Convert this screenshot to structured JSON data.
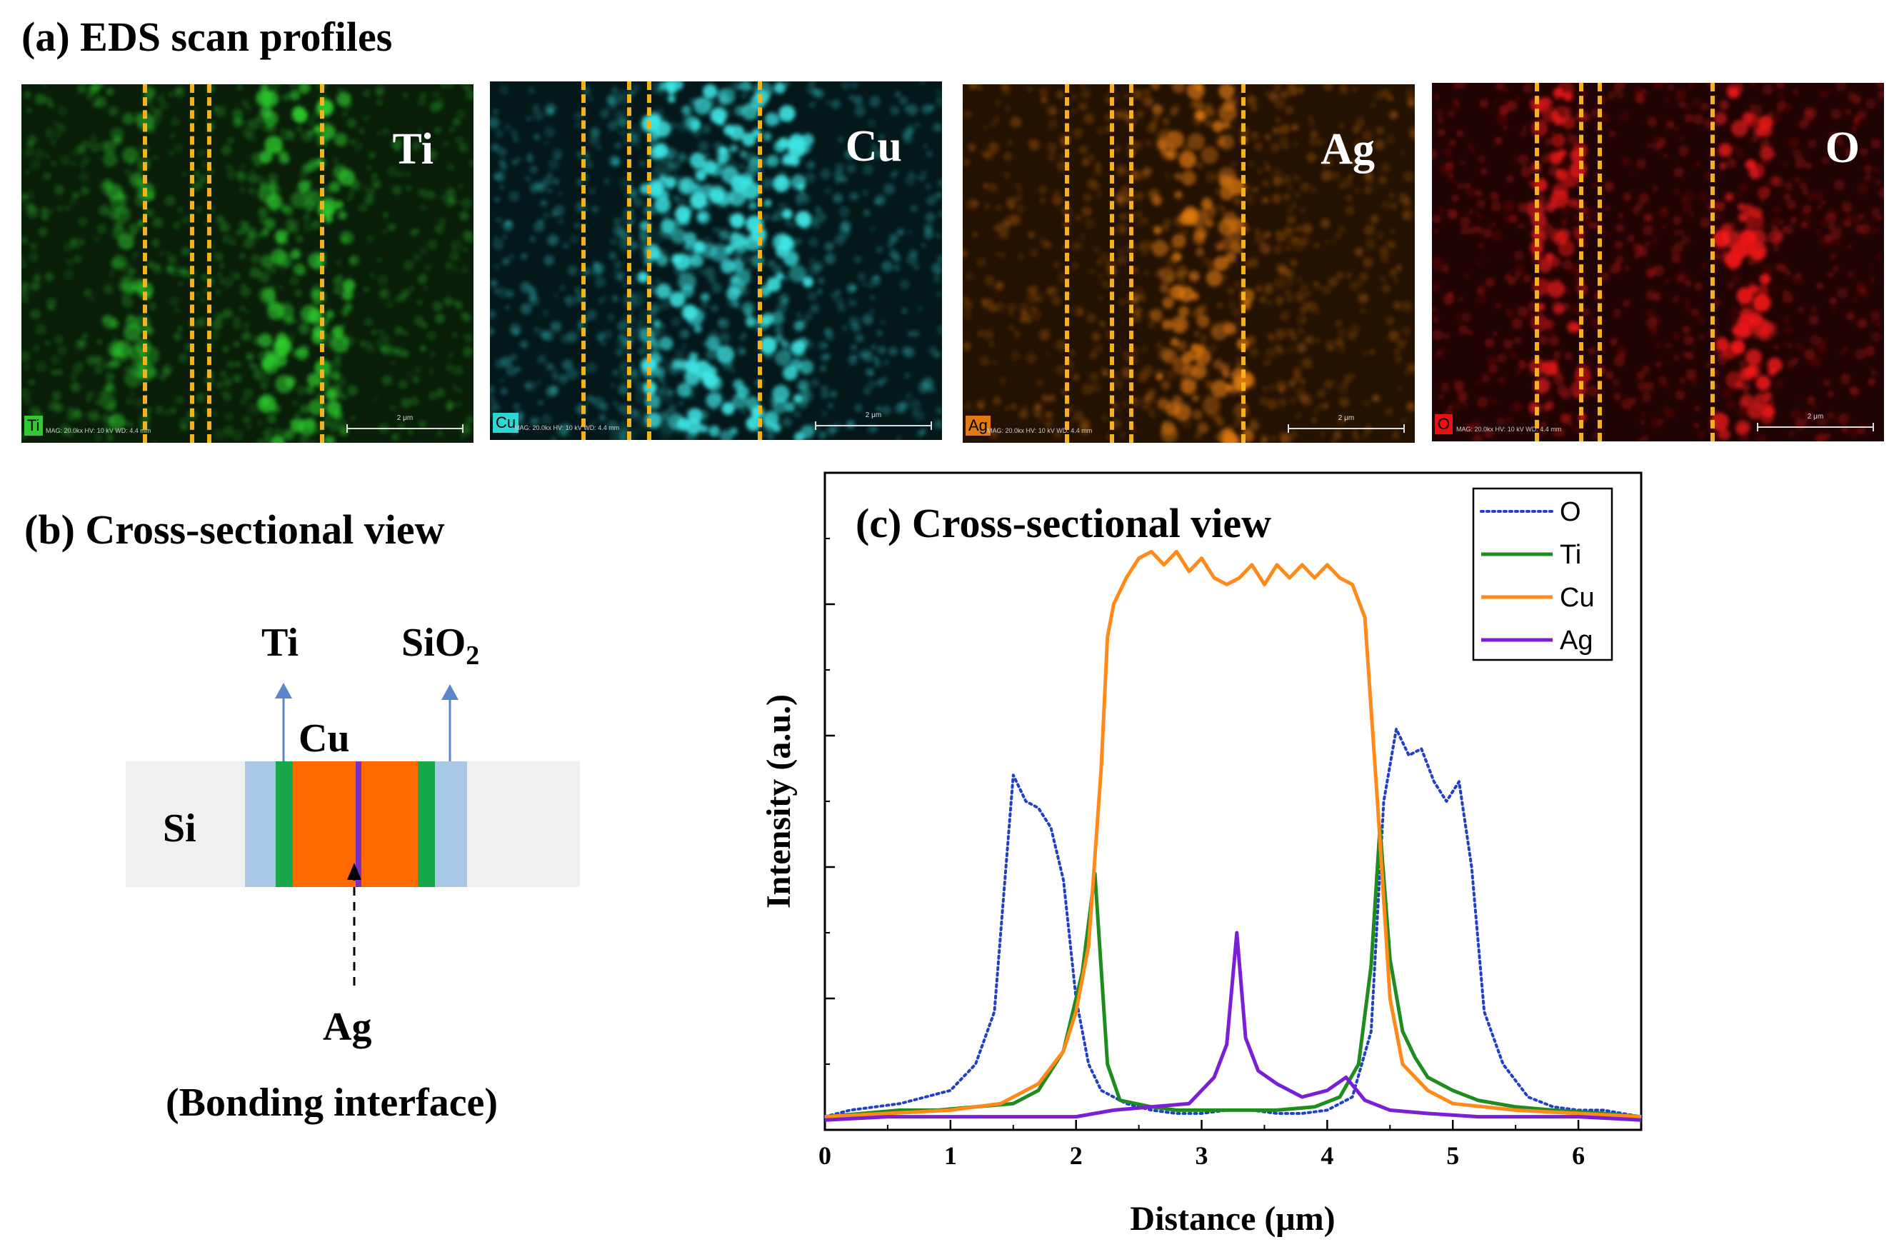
{
  "panel_a": {
    "title": "(a) EDS scan profiles",
    "maps": [
      {
        "element": "Ti",
        "tag": "Ti",
        "color": "#2fd12f",
        "bg": "#0a1e0a",
        "tag_bg": "#32c832",
        "meta": "MAG: 20.0kx   HV: 10 kV   WD: 4.4 mm",
        "scale": "2 μm"
      },
      {
        "element": "Cu",
        "tag": "Cu",
        "color": "#3fe6e6",
        "bg": "#04181a",
        "tag_bg": "#2fd6d6",
        "meta": "MAG: 20.0kx   HV: 10 kV   WD: 4.4 mm",
        "scale": "2 μm"
      },
      {
        "element": "Ag",
        "tag": "Ag",
        "color": "#e07a12",
        "bg": "#241203",
        "tag_bg": "#e07a12",
        "meta": "MAG: 20.0kx   HV: 10 kV   WD: 4.4 mm",
        "scale": "2 μm"
      },
      {
        "element": "O",
        "tag": "O",
        "color": "#f01a1a",
        "bg": "#200404",
        "tag_bg": "#e81010",
        "meta": "MAG: 20.0kx   HV: 10 kV   WD: 4.4 mm",
        "scale": "2 μm"
      }
    ]
  },
  "panel_b": {
    "title": "(b) Cross-sectional view",
    "labels": {
      "ti": "Ti",
      "sio2": "SiO",
      "sio2_sub": "2",
      "cu": "Cu",
      "si": "Si",
      "ag": "Ag",
      "bonding": "(Bonding interface)"
    },
    "colors": {
      "si": "#f0f0f0",
      "sio2": "#a9c8e6",
      "ti": "#17a84a",
      "cu": "#ff6a00",
      "ag": "#7a2fbf",
      "arrow": "#5b86c9"
    }
  },
  "chart_data": {
    "type": "line",
    "title": "(c) Cross-sectional view",
    "xlabel": "Distance (μm)",
    "ylabel": "Intensity (a.u.)",
    "xlim": [
      0,
      6.5
    ],
    "ylim": [
      0,
      10
    ],
    "x_ticks": [
      0,
      1,
      2,
      3,
      4,
      5,
      6
    ],
    "legend_position": "top-right",
    "series": [
      {
        "name": "O",
        "style": "dotted",
        "color": "#2140c8",
        "x": [
          0,
          0.2,
          0.4,
          0.6,
          0.8,
          1.0,
          1.2,
          1.35,
          1.5,
          1.6,
          1.7,
          1.8,
          1.9,
          2.0,
          2.1,
          2.2,
          2.4,
          2.6,
          2.8,
          3.0,
          3.2,
          3.4,
          3.6,
          3.8,
          4.0,
          4.2,
          4.35,
          4.45,
          4.55,
          4.65,
          4.75,
          4.85,
          4.95,
          5.05,
          5.15,
          5.25,
          5.4,
          5.6,
          5.8,
          6.0,
          6.2,
          6.5
        ],
        "y": [
          0.2,
          0.3,
          0.35,
          0.4,
          0.5,
          0.6,
          1.0,
          1.8,
          5.4,
          5.0,
          4.9,
          4.6,
          3.8,
          2.0,
          1.0,
          0.6,
          0.4,
          0.3,
          0.25,
          0.25,
          0.3,
          0.3,
          0.25,
          0.25,
          0.3,
          0.5,
          1.5,
          5.0,
          6.1,
          5.7,
          5.8,
          5.3,
          5.0,
          5.3,
          4.0,
          1.8,
          1.0,
          0.5,
          0.35,
          0.3,
          0.3,
          0.2
        ]
      },
      {
        "name": "Ti",
        "style": "solid",
        "color": "#1e8c1e",
        "x": [
          0,
          0.3,
          0.6,
          0.9,
          1.2,
          1.5,
          1.7,
          1.9,
          2.05,
          2.15,
          2.25,
          2.35,
          2.6,
          2.8,
          3.0,
          3.3,
          3.6,
          3.9,
          4.1,
          4.25,
          4.35,
          4.42,
          4.5,
          4.6,
          4.7,
          4.8,
          5.0,
          5.2,
          5.5,
          5.8,
          6.2,
          6.5
        ],
        "y": [
          0.2,
          0.25,
          0.3,
          0.3,
          0.35,
          0.4,
          0.6,
          1.2,
          2.4,
          3.9,
          1.0,
          0.45,
          0.35,
          0.3,
          0.3,
          0.3,
          0.3,
          0.35,
          0.5,
          1.0,
          2.5,
          4.6,
          2.6,
          1.5,
          1.1,
          0.8,
          0.6,
          0.45,
          0.35,
          0.3,
          0.25,
          0.2
        ]
      },
      {
        "name": "Cu",
        "style": "solid",
        "color": "#ff8a1a",
        "x": [
          0,
          0.5,
          1.0,
          1.4,
          1.7,
          1.9,
          2.0,
          2.1,
          2.2,
          2.25,
          2.3,
          2.4,
          2.5,
          2.6,
          2.7,
          2.8,
          2.9,
          3.0,
          3.1,
          3.2,
          3.3,
          3.4,
          3.5,
          3.6,
          3.7,
          3.8,
          3.9,
          4.0,
          4.1,
          4.2,
          4.3,
          4.4,
          4.5,
          4.6,
          4.8,
          5.0,
          5.5,
          6.0,
          6.5
        ],
        "y": [
          0.2,
          0.25,
          0.3,
          0.4,
          0.7,
          1.2,
          1.8,
          2.8,
          5.5,
          7.5,
          8.0,
          8.4,
          8.7,
          8.8,
          8.6,
          8.8,
          8.5,
          8.7,
          8.4,
          8.3,
          8.4,
          8.6,
          8.3,
          8.6,
          8.4,
          8.6,
          8.4,
          8.6,
          8.4,
          8.3,
          7.8,
          5.0,
          2.0,
          1.0,
          0.6,
          0.4,
          0.3,
          0.25,
          0.2
        ]
      },
      {
        "name": "Ag",
        "style": "solid",
        "color": "#7a1fd6",
        "x": [
          0,
          0.5,
          1.0,
          1.5,
          2.0,
          2.3,
          2.6,
          2.9,
          3.1,
          3.2,
          3.28,
          3.35,
          3.45,
          3.6,
          3.8,
          4.0,
          4.15,
          4.3,
          4.5,
          4.8,
          5.2,
          5.6,
          6.0,
          6.5
        ],
        "y": [
          0.15,
          0.2,
          0.2,
          0.2,
          0.2,
          0.3,
          0.35,
          0.4,
          0.8,
          1.3,
          3.0,
          1.4,
          0.9,
          0.7,
          0.5,
          0.6,
          0.8,
          0.45,
          0.3,
          0.25,
          0.2,
          0.2,
          0.2,
          0.15
        ]
      }
    ]
  }
}
